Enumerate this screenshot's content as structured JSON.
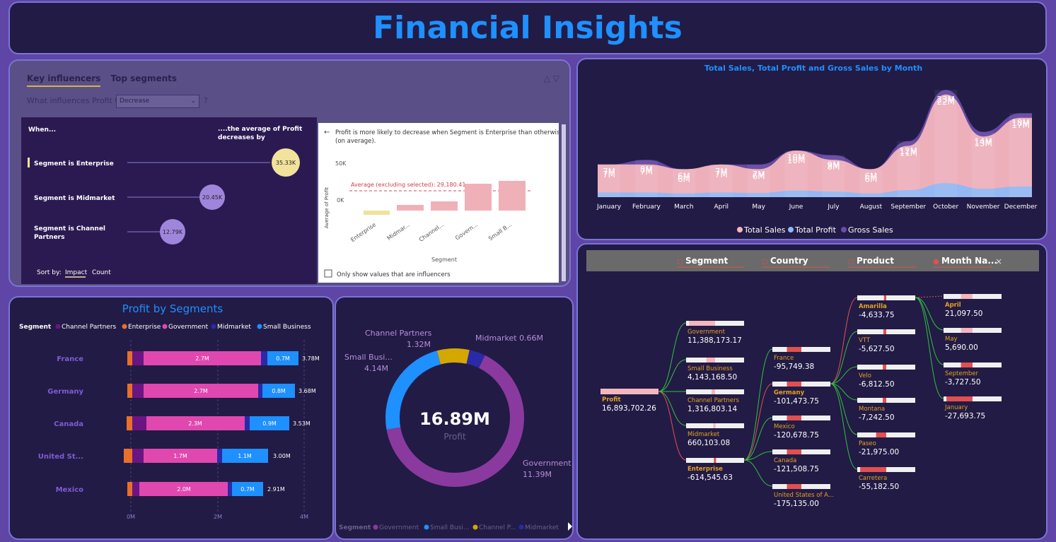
{
  "title": "Financial Insights",
  "key_influencers": {
    "tabs": [
      "Key influencers",
      "Top segments"
    ],
    "question_prefix": "What influences Profit to",
    "dropdown_value": "Decrease",
    "qmark": "?",
    "col_when": "When...",
    "col_avg": "....the average of Profit decreases by",
    "items": [
      {
        "label": "Segment is Enterprise",
        "value": "35.33K"
      },
      {
        "label": "Segment is Midmarket",
        "value": "20.45K"
      },
      {
        "label": "Segment is Channel Partners",
        "value": "12.79K"
      }
    ],
    "sort_label": "Sort by:",
    "sort_options": [
      "Impact",
      "Count"
    ],
    "detail": {
      "back": "←",
      "text": "Profit is more likely to decrease when Segment is Enterprise than otherwise (on average).",
      "y_label": "Average of Profit",
      "y_ticks": [
        "50K",
        "0K"
      ],
      "avg_label": "Average (excluding selected): 29,180.41",
      "categories": [
        "Enterprise",
        "Midmar...",
        "Channel...",
        "Govern...",
        "Small B..."
      ],
      "x_label": "Segment",
      "checkbox_label": "Only show values that are influencers"
    }
  },
  "profit_by_segments": {
    "title": "Profit by Segments",
    "legend_title": "Segment",
    "legend": [
      {
        "name": "Channel Partners",
        "color": "#6b1580"
      },
      {
        "name": "Enterprise",
        "color": "#e8702a"
      },
      {
        "name": "Government",
        "color": "#e048b0"
      },
      {
        "name": "Midmarket",
        "color": "#2a2aa8"
      },
      {
        "name": "Small Business",
        "color": "#1e90ff"
      }
    ],
    "rows": [
      {
        "label": "France",
        "total": "3.78M",
        "gov_label": "2.7M",
        "sb_label": "0.7M"
      },
      {
        "label": "Germany",
        "total": "3.68M",
        "gov_label": "2.7M",
        "sb_label": "0.8M"
      },
      {
        "label": "Canada",
        "total": "3.53M",
        "gov_label": "2.3M",
        "sb_label": "0.9M"
      },
      {
        "label": "United St...",
        "total": "3.00M",
        "gov_label": "1.7M",
        "sb_label": "1.1M"
      },
      {
        "label": "Mexico",
        "total": "2.91M",
        "gov_label": "2.0M",
        "sb_label": "0.7M"
      }
    ],
    "x_ticks": [
      "0M",
      "2M",
      "4M"
    ]
  },
  "donut": {
    "center_value": "16.89M",
    "center_label": "Profit",
    "slices": [
      {
        "name": "Government",
        "value": 11.39,
        "label": "Government",
        "value_label": "11.39M",
        "color": "#8a3a9e"
      },
      {
        "name": "Small Business",
        "value": 4.14,
        "label": "Small Busi...",
        "value_label": "4.14M",
        "color": "#1e90ff"
      },
      {
        "name": "Channel Partners",
        "value": 1.32,
        "label": "Channel Partners",
        "value_label": "1.32M",
        "color": "#d4a800"
      },
      {
        "name": "Midmarket",
        "value": 0.66,
        "label": "Midmarket 0.66M",
        "value_label": "",
        "color": "#2a2aa8"
      }
    ],
    "legend_title": "Segment",
    "legend": [
      "Government",
      "Small Busi...",
      "Channel P...",
      "Midmarket"
    ]
  },
  "chart_data": [
    {
      "type": "area",
      "title": "Total Sales, Total Profit and Gross Sales by Month",
      "categories": [
        "January",
        "February",
        "March",
        "April",
        "May",
        "June",
        "July",
        "August",
        "September",
        "October",
        "November",
        "December"
      ],
      "series": [
        {
          "name": "Total Sales",
          "values": [
            7,
            7,
            6,
            7,
            6,
            10,
            8,
            6,
            11,
            22,
            13,
            17
          ],
          "color": "#f4b6bd"
        },
        {
          "name": "Total Profit",
          "values": [
            1,
            1,
            0.8,
            1,
            0.9,
            1.4,
            1.2,
            0.8,
            1.5,
            3,
            1.8,
            2.3
          ],
          "color": "#8fb8f5"
        },
        {
          "name": "Gross Sales",
          "values": [
            7,
            8,
            6,
            7,
            7,
            10,
            9,
            6,
            12,
            23,
            14,
            18
          ],
          "color": "#6a4dab"
        }
      ],
      "labels_top": [
        "7M",
        "8M",
        "6M",
        "7M",
        "7M",
        "10M",
        "9M",
        "6M",
        "12M",
        "23M",
        "14M",
        "18M"
      ],
      "labels_mid": [
        "7M",
        "7M",
        "6M",
        "7M",
        "6M",
        "10M",
        "8M",
        "6M",
        "11M",
        "22M",
        "13M",
        "17M"
      ]
    }
  ],
  "decomp": {
    "headers": [
      "Segment",
      "Country",
      "Product",
      "Month Na..."
    ],
    "close": "×",
    "root": {
      "label": "Profit",
      "value": "16,893,702.26"
    },
    "segments": [
      {
        "label": "Government",
        "value": "11,388,173.17"
      },
      {
        "label": "Small Business",
        "value": "4,143,168.50"
      },
      {
        "label": "Channel Partners",
        "value": "1,316,803.14"
      },
      {
        "label": "Midmarket",
        "value": "660,103.08"
      },
      {
        "label": "Enterprise",
        "value": "-614,545.63"
      }
    ],
    "countries": [
      {
        "label": "France",
        "value": "-95,749.38"
      },
      {
        "label": "Germany",
        "value": "-101,473.75"
      },
      {
        "label": "Mexico",
        "value": "-120,678.75"
      },
      {
        "label": "Canada",
        "value": "-121,508.75"
      },
      {
        "label": "United States of A...",
        "value": "-175,135.00"
      }
    ],
    "products": [
      {
        "label": "Amarilla",
        "value": "-4,633.75"
      },
      {
        "label": "VTT",
        "value": "-5,627.50"
      },
      {
        "label": "Velo",
        "value": "-6,812.50"
      },
      {
        "label": "Montana",
        "value": "-7,242.50"
      },
      {
        "label": "Paseo",
        "value": "-21,975.00"
      },
      {
        "label": "Carretera",
        "value": "-55,182.50"
      }
    ],
    "months": [
      {
        "label": "April",
        "value": "21,097.50"
      },
      {
        "label": "May",
        "value": "5,690.00"
      },
      {
        "label": "September",
        "value": "-3,727.50"
      },
      {
        "label": "January",
        "value": "-27,693.75"
      }
    ]
  }
}
